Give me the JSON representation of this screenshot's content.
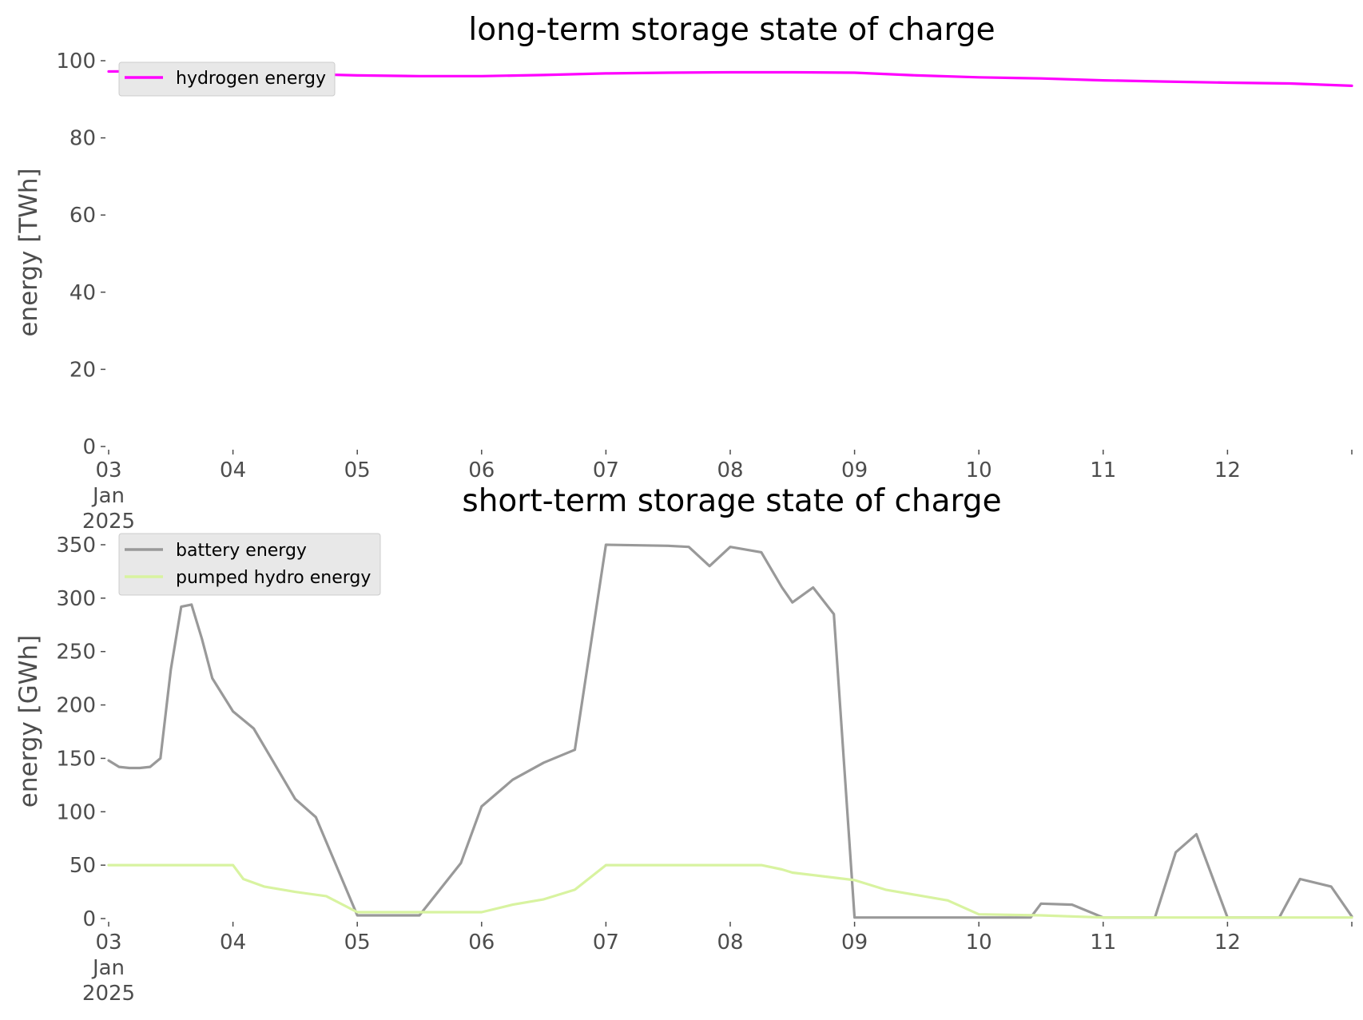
{
  "chart_data": [
    {
      "type": "line",
      "title": "long-term storage state of charge",
      "xlabel": "",
      "ylabel": "energy [TWh]",
      "xlim": [
        "2025-01-03T00:00",
        "2025-01-13T00:00"
      ],
      "ylim": [
        0,
        100
      ],
      "yticks": [
        0,
        20,
        40,
        60,
        80,
        100
      ],
      "xtick_labels": [
        [
          "03",
          "Jan",
          "2025"
        ],
        [
          "04"
        ],
        [
          "05"
        ],
        [
          "06"
        ],
        [
          "07"
        ],
        [
          "08"
        ],
        [
          "09"
        ],
        [
          "10"
        ],
        [
          "11"
        ],
        [
          "12"
        ]
      ],
      "grid": false,
      "legend_position": "upper-left",
      "x": [
        "2025-01-03T00:00",
        "2025-01-03T12:00",
        "2025-01-04T00:00",
        "2025-01-04T12:00",
        "2025-01-05T00:00",
        "2025-01-05T12:00",
        "2025-01-06T00:00",
        "2025-01-06T12:00",
        "2025-01-07T00:00",
        "2025-01-07T12:00",
        "2025-01-08T00:00",
        "2025-01-08T12:00",
        "2025-01-09T00:00",
        "2025-01-09T12:00",
        "2025-01-10T00:00",
        "2025-01-10T12:00",
        "2025-01-11T00:00",
        "2025-01-11T12:00",
        "2025-01-12T00:00",
        "2025-01-12T12:00",
        "2025-01-13T00:00"
      ],
      "series": [
        {
          "name": "hydrogen energy",
          "color": "#ff00ff",
          "values": [
            97.2,
            97.3,
            97.0,
            96.6,
            96.2,
            96.0,
            96.0,
            96.3,
            96.7,
            96.9,
            97.0,
            97.0,
            96.9,
            96.2,
            95.7,
            95.4,
            94.9,
            94.6,
            94.3,
            94.1,
            93.5
          ]
        }
      ]
    },
    {
      "type": "line",
      "title": "short-term storage state of charge",
      "xlabel": "",
      "ylabel": "energy [GWh]",
      "xlim": [
        "2025-01-03T00:00",
        "2025-01-13T00:00"
      ],
      "ylim": [
        0,
        350
      ],
      "yticks": [
        0,
        50,
        100,
        150,
        200,
        250,
        300,
        350
      ],
      "xtick_labels": [
        [
          "03",
          "Jan",
          "2025"
        ],
        [
          "04"
        ],
        [
          "05"
        ],
        [
          "06"
        ],
        [
          "07"
        ],
        [
          "08"
        ],
        [
          "09"
        ],
        [
          "10"
        ],
        [
          "11"
        ],
        [
          "12"
        ]
      ],
      "grid": false,
      "legend_position": "upper-left",
      "series": [
        {
          "name": "battery energy",
          "color": "#999999",
          "x": [
            "2025-01-03T00:00",
            "2025-01-03T02:00",
            "2025-01-03T04:00",
            "2025-01-03T06:00",
            "2025-01-03T08:00",
            "2025-01-03T10:00",
            "2025-01-03T12:00",
            "2025-01-03T14:00",
            "2025-01-03T16:00",
            "2025-01-03T18:00",
            "2025-01-03T20:00",
            "2025-01-04T00:00",
            "2025-01-04T04:00",
            "2025-01-04T08:00",
            "2025-01-04T12:00",
            "2025-01-04T16:00",
            "2025-01-05T00:00",
            "2025-01-05T12:00",
            "2025-01-05T20:00",
            "2025-01-06T00:00",
            "2025-01-06T06:00",
            "2025-01-06T12:00",
            "2025-01-06T18:00",
            "2025-01-07T00:00",
            "2025-01-07T12:00",
            "2025-01-07T16:00",
            "2025-01-07T20:00",
            "2025-01-08T00:00",
            "2025-01-08T06:00",
            "2025-01-08T10:00",
            "2025-01-08T12:00",
            "2025-01-08T16:00",
            "2025-01-08T20:00",
            "2025-01-09T00:00",
            "2025-01-10T00:00",
            "2025-01-10T10:00",
            "2025-01-10T12:00",
            "2025-01-10T18:00",
            "2025-01-11T00:00",
            "2025-01-11T10:00",
            "2025-01-11T14:00",
            "2025-01-11T18:00",
            "2025-01-12T00:00",
            "2025-01-12T10:00",
            "2025-01-12T14:00",
            "2025-01-12T20:00",
            "2025-01-13T00:00"
          ],
          "values": [
            148,
            142,
            141,
            141,
            142,
            150,
            233,
            292,
            294,
            262,
            225,
            194,
            178,
            145,
            112,
            95,
            3,
            3,
            52,
            105,
            130,
            146,
            158,
            350,
            349,
            348,
            330,
            348,
            343,
            310,
            296,
            310,
            285,
            1,
            1,
            1,
            14,
            13,
            1,
            1,
            62,
            79,
            1,
            1,
            37,
            30,
            2
          ]
        },
        {
          "name": "pumped hydro energy",
          "color": "#d8f3a0",
          "x": [
            "2025-01-03T00:00",
            "2025-01-04T00:00",
            "2025-01-04T02:00",
            "2025-01-04T06:00",
            "2025-01-04T12:00",
            "2025-01-04T18:00",
            "2025-01-05T00:00",
            "2025-01-06T00:00",
            "2025-01-06T06:00",
            "2025-01-06T12:00",
            "2025-01-06T18:00",
            "2025-01-07T00:00",
            "2025-01-07T12:00",
            "2025-01-08T00:00",
            "2025-01-08T06:00",
            "2025-01-08T10:00",
            "2025-01-08T12:00",
            "2025-01-09T00:00",
            "2025-01-09T06:00",
            "2025-01-09T12:00",
            "2025-01-09T18:00",
            "2025-01-10T00:00",
            "2025-01-10T12:00",
            "2025-01-11T00:00",
            "2025-01-13T00:00"
          ],
          "values": [
            50,
            50,
            37,
            30,
            25,
            21,
            6,
            6,
            13,
            18,
            27,
            50,
            50,
            50,
            50,
            46,
            43,
            36,
            27,
            22,
            17,
            4,
            3,
            1,
            1
          ]
        }
      ]
    }
  ]
}
